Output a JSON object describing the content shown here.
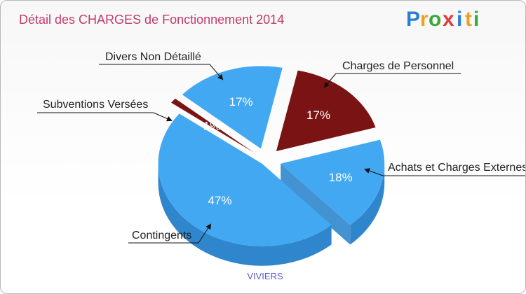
{
  "chart_data": {
    "type": "pie",
    "title": "Détail des CHARGES de Fonctionnement 2014",
    "subtitle": "VIVIERS",
    "slices": [
      {
        "label": "Charges de Personnel",
        "percent_label": "17%",
        "value": 17,
        "color": "#7a1414",
        "side": "#5a0c0c"
      },
      {
        "label": "Achats et Charges Externes",
        "percent_label": "18%",
        "value": 18,
        "color": "#42a8f2",
        "side": "#2f86cc"
      },
      {
        "label": "Contingents",
        "percent_label": "47%",
        "value": 47,
        "color": "#42a8f2",
        "side": "#2f86cc"
      },
      {
        "label": "Subventions Versées",
        "percent_label": "1%",
        "value": 1,
        "color": "#7a1414",
        "side": "#5a0c0c"
      },
      {
        "label": "Divers Non Détaillé",
        "percent_label": "17%",
        "value": 17,
        "color": "#42a8f2",
        "side": "#2f86cc"
      }
    ]
  },
  "brand": {
    "letters": [
      "P",
      "r",
      "o",
      "x",
      "i",
      "t",
      "i"
    ],
    "colors": [
      "#2a7fd4",
      "#f0a020",
      "#3aa83a",
      "#e03c3c",
      "#2a7fd4",
      "#f0a020",
      "#3aa83a"
    ]
  },
  "colors": {
    "title": "#c03a6a",
    "commune": "#5b5bd6"
  }
}
